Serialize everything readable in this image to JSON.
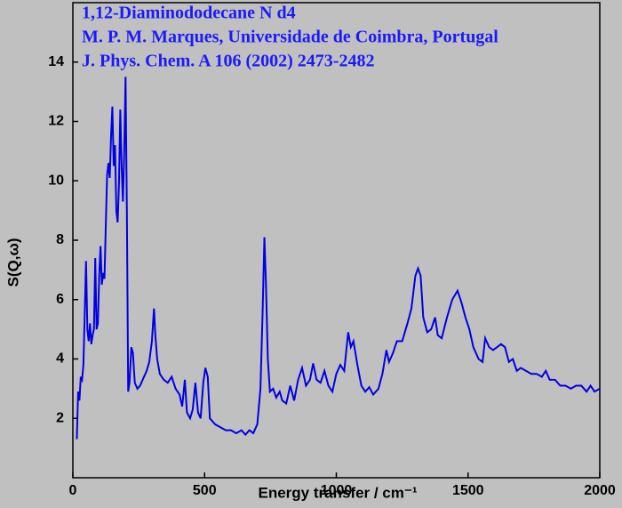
{
  "chart_data": {
    "type": "line",
    "title": [
      "1,12-Diaminododecane N d4",
      "M. P. M. Marques, Universidade de Coimbra, Portugal",
      "J. Phys. Chem. A 106 (2002) 2473-2482"
    ],
    "xlabel": "Energy transfer / cm⁻¹",
    "ylabel": "S(Q,ω)",
    "xlim": [
      0,
      2000
    ],
    "xticks": [
      0,
      500,
      1000,
      1500,
      2000
    ],
    "ylim": [
      0,
      16
    ],
    "yticks": [
      2,
      4,
      6,
      8,
      10,
      12,
      14
    ],
    "x": [
      15,
      20,
      25,
      30,
      35,
      40,
      45,
      50,
      55,
      60,
      65,
      70,
      75,
      80,
      85,
      90,
      95,
      100,
      105,
      110,
      115,
      120,
      125,
      130,
      135,
      140,
      145,
      150,
      155,
      160,
      165,
      170,
      175,
      180,
      185,
      190,
      195,
      200,
      205,
      210,
      215,
      222,
      228,
      235,
      245,
      255,
      265,
      280,
      290,
      300,
      308,
      313,
      320,
      330,
      345,
      360,
      375,
      390,
      405,
      415,
      425,
      433,
      445,
      455,
      465,
      475,
      485,
      495,
      503,
      512,
      520,
      540,
      560,
      580,
      600,
      620,
      640,
      655,
      670,
      685,
      700,
      712,
      720,
      727,
      733,
      740,
      748,
      760,
      772,
      785,
      795,
      810,
      825,
      840,
      855,
      870,
      885,
      900,
      912,
      925,
      940,
      955,
      970,
      985,
      1000,
      1015,
      1030,
      1045,
      1055,
      1065,
      1080,
      1095,
      1110,
      1125,
      1140,
      1160,
      1175,
      1190,
      1200,
      1215,
      1230,
      1250,
      1270,
      1285,
      1300,
      1310,
      1320,
      1330,
      1345,
      1360,
      1375,
      1385,
      1400,
      1420,
      1440,
      1460,
      1475,
      1490,
      1505,
      1520,
      1540,
      1555,
      1565,
      1580,
      1595,
      1610,
      1625,
      1640,
      1655,
      1670,
      1685,
      1700,
      1720,
      1740,
      1760,
      1780,
      1795,
      1810,
      1830,
      1850,
      1870,
      1890,
      1910,
      1930,
      1950,
      1965,
      1980,
      2000
    ],
    "series": [
      {
        "name": "S(Q,w)",
        "color": "#0000e6",
        "values": [
          1.3,
          2.9,
          2.6,
          3.4,
          3.3,
          3.8,
          5.5,
          7.3,
          5.0,
          4.6,
          5.2,
          4.5,
          4.8,
          5.0,
          7.4,
          5.0,
          5.2,
          6.8,
          7.8,
          6.5,
          6.9,
          6.7,
          8.5,
          10.2,
          10.6,
          10.1,
          11.5,
          12.5,
          10.5,
          11.2,
          9.0,
          8.6,
          9.9,
          12.4,
          10.5,
          9.3,
          11.0,
          13.5,
          9.0,
          2.9,
          3.2,
          4.4,
          4.2,
          3.2,
          3.0,
          3.1,
          3.3,
          3.6,
          3.9,
          4.6,
          5.7,
          4.8,
          4.0,
          3.5,
          3.3,
          3.2,
          3.4,
          3.0,
          2.8,
          2.4,
          3.3,
          2.2,
          2.0,
          2.3,
          3.2,
          2.2,
          2.0,
          3.2,
          3.7,
          3.4,
          2.0,
          1.8,
          1.7,
          1.6,
          1.6,
          1.5,
          1.6,
          1.45,
          1.6,
          1.5,
          1.8,
          3.0,
          5.5,
          8.1,
          6.5,
          4.0,
          2.9,
          3.0,
          2.7,
          2.9,
          2.6,
          2.5,
          3.1,
          2.6,
          3.3,
          3.7,
          3.1,
          3.3,
          3.85,
          3.3,
          3.2,
          3.6,
          3.1,
          2.9,
          3.5,
          3.8,
          3.6,
          4.9,
          4.4,
          4.6,
          3.8,
          3.1,
          2.9,
          3.05,
          2.8,
          3.0,
          3.5,
          4.3,
          3.9,
          4.2,
          4.6,
          4.6,
          5.2,
          5.7,
          6.8,
          7.05,
          6.8,
          5.4,
          4.9,
          5.0,
          5.4,
          4.8,
          4.7,
          5.4,
          6.0,
          6.3,
          5.9,
          5.4,
          5.0,
          4.4,
          4.0,
          3.9,
          4.7,
          4.4,
          4.3,
          4.4,
          4.5,
          4.4,
          3.9,
          4.0,
          3.6,
          3.7,
          3.6,
          3.5,
          3.5,
          3.4,
          3.6,
          3.3,
          3.3,
          3.1,
          3.1,
          3.0,
          3.1,
          3.1,
          2.9,
          3.1,
          2.9,
          3.0
        ]
      }
    ]
  }
}
